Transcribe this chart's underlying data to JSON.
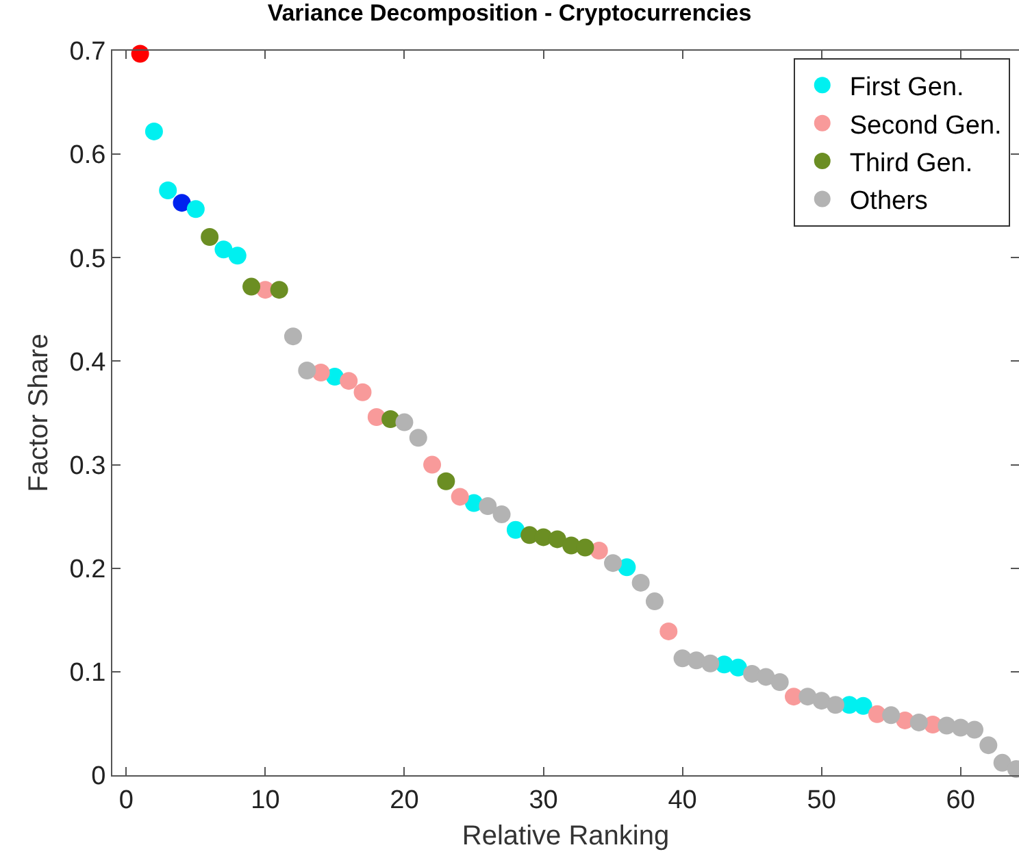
{
  "chart_data": {
    "type": "scatter",
    "title": "Variance Decomposition - Cryptocurrencies",
    "xlabel": "Relative Ranking",
    "ylabel": "Factor Share",
    "xlim": [
      -1,
      64.2
    ],
    "xticks": [
      0,
      10,
      20,
      30,
      40,
      50,
      60
    ],
    "ylim": [
      0,
      0.7
    ],
    "yticks": [
      0,
      0.1,
      0.2,
      0.3,
      0.4,
      0.5,
      0.6,
      0.7
    ],
    "grid": false,
    "legend": "top right",
    "marker": "circle",
    "series": [
      {
        "color": "#0022ee",
        "x": [
          4
        ],
        "values": [
          0.553
        ]
      },
      {
        "name": "First Gen.",
        "color": "#00f0f0",
        "x": [
          2,
          3,
          5,
          7,
          8,
          15,
          25,
          28,
          36,
          43,
          44,
          52,
          53
        ],
        "values": [
          0.622,
          0.565,
          0.547,
          0.508,
          0.502,
          0.385,
          0.263,
          0.237,
          0.201,
          0.107,
          0.104,
          0.068,
          0.067
        ]
      },
      {
        "color": "#ff0000",
        "x": [
          1
        ],
        "values": [
          0.697
        ]
      },
      {
        "name": "Second Gen.",
        "color": "#f89a9a",
        "x": [
          10,
          14,
          16,
          17,
          18,
          22,
          24,
          34,
          39,
          48,
          54,
          56,
          58
        ],
        "values": [
          0.469,
          0.389,
          0.381,
          0.37,
          0.346,
          0.3,
          0.269,
          0.217,
          0.139,
          0.076,
          0.059,
          0.053,
          0.049
        ]
      },
      {
        "name": "Third Gen.",
        "color": "#6b8e23",
        "x": [
          6,
          9,
          11,
          19,
          23,
          29,
          30,
          31,
          32,
          33
        ],
        "values": [
          0.52,
          0.472,
          0.469,
          0.344,
          0.284,
          0.232,
          0.23,
          0.228,
          0.222,
          0.22
        ]
      },
      {
        "name": "Others",
        "color": "#b3b3b3",
        "x": [
          12,
          13,
          20,
          21,
          26,
          27,
          35,
          37,
          38,
          40,
          41,
          42,
          45,
          46,
          47,
          49,
          50,
          51,
          55,
          57,
          59,
          60,
          61,
          62,
          63,
          64
        ],
        "values": [
          0.424,
          0.391,
          0.341,
          0.326,
          0.26,
          0.252,
          0.205,
          0.186,
          0.168,
          0.113,
          0.111,
          0.108,
          0.098,
          0.095,
          0.09,
          0.076,
          0.072,
          0.068,
          0.058,
          0.051,
          0.048,
          0.046,
          0.044,
          0.029,
          0.012,
          0.006
        ]
      }
    ]
  }
}
